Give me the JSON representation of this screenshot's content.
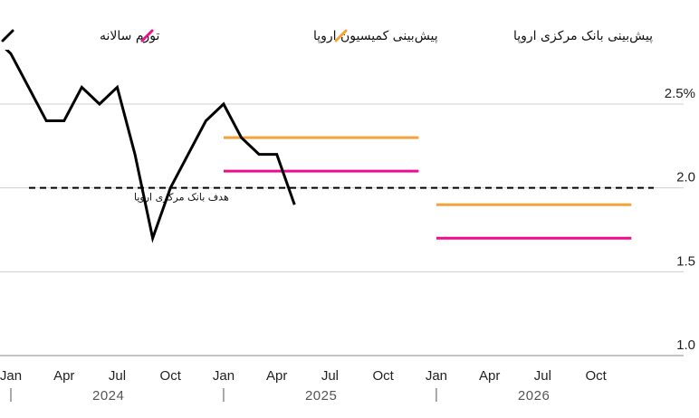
{
  "chart_data": {
    "type": "line",
    "legend": [
      {
        "key": "inflation",
        "label": "تورم سالانه",
        "color": "#000000"
      },
      {
        "key": "ec",
        "label": "پیش‌بینی کمیسیون اروپا",
        "color": "#ee0d8c"
      },
      {
        "key": "ecb",
        "label": "پیش‌بینی بانک مرکزی اروپا",
        "color": "#f5a23a"
      }
    ],
    "y_ticks": [
      {
        "value": 2.5,
        "label": "2.5%"
      },
      {
        "value": 2.0,
        "label": "2.0"
      },
      {
        "value": 1.5,
        "label": "1.5"
      },
      {
        "value": 1.0,
        "label": "1.0"
      }
    ],
    "ylim": [
      1.0,
      2.8
    ],
    "x_ticks": [
      "Jan",
      "Apr",
      "Jul",
      "Oct",
      "Jan",
      "Apr",
      "Jul",
      "Oct",
      "Jan",
      "Apr",
      "Jul",
      "Oct"
    ],
    "years": [
      "2024",
      "2025",
      "2026"
    ],
    "series": [
      {
        "name": "تورم سالانه",
        "key": "inflation",
        "x": [
          "2023-12",
          "2024-01",
          "2024-02",
          "2024-03",
          "2024-04",
          "2024-05",
          "2024-06",
          "2024-07",
          "2024-08",
          "2024-09",
          "2024-10",
          "2024-11",
          "2024-12",
          "2025-01",
          "2025-02",
          "2025-03",
          "2025-04",
          "2025-05"
        ],
        "values": [
          2.9,
          2.8,
          2.6,
          2.4,
          2.4,
          2.6,
          2.5,
          2.6,
          2.2,
          1.7,
          2.0,
          2.2,
          2.4,
          2.5,
          2.3,
          2.2,
          2.2,
          1.9
        ]
      },
      {
        "name": "پیش‌بینی بانک مرکزی اروپا",
        "key": "ecb",
        "segments": [
          {
            "from": "2025-01",
            "to": "2025-12",
            "value": 2.3
          },
          {
            "from": "2026-01",
            "to": "2026-12",
            "value": 1.9
          }
        ]
      },
      {
        "name": "پیش‌بینی کمیسیون اروپا",
        "key": "ec",
        "segments": [
          {
            "from": "2025-01",
            "to": "2025-12",
            "value": 2.1
          },
          {
            "from": "2026-01",
            "to": "2026-12",
            "value": 1.7
          }
        ]
      }
    ],
    "reference_line": {
      "value": 2.0,
      "label": "هدف بانک مرکزی اروپا"
    }
  }
}
